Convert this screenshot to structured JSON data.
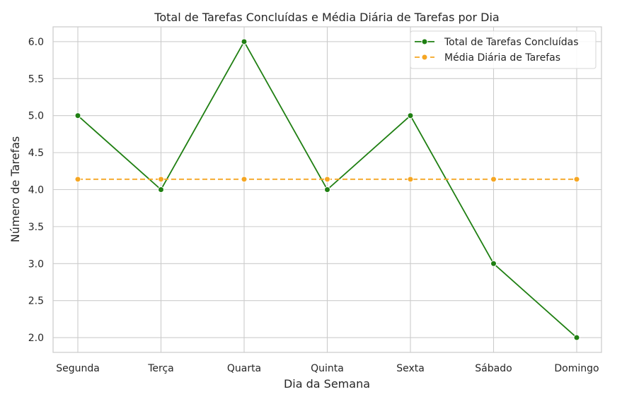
{
  "chart_data": {
    "type": "line",
    "title": "Total de Tarefas Concluídas e Média Diária de Tarefas por Dia",
    "xlabel": "Dia da Semana",
    "ylabel": "Número de Tarefas",
    "categories": [
      "Segunda",
      "Terça",
      "Quarta",
      "Quinta",
      "Sexta",
      "Sábado",
      "Domingo"
    ],
    "ylim": [
      1.8,
      6.2
    ],
    "yticks": [
      "2.0",
      "2.5",
      "3.0",
      "3.5",
      "4.0",
      "4.5",
      "5.0",
      "5.5",
      "6.0"
    ],
    "grid": true,
    "legend_position": "top-right",
    "series": [
      {
        "name": "Total de Tarefas Concluídas",
        "values": [
          5,
          4,
          6,
          4,
          5,
          3,
          2
        ],
        "color": "#1f7f12",
        "line_style": "solid",
        "marker": "circle"
      },
      {
        "name": "Média Diária de Tarefas",
        "values": [
          4.14,
          4.14,
          4.14,
          4.14,
          4.14,
          4.14,
          4.14
        ],
        "color": "#f5a623",
        "line_style": "dashed",
        "marker": "circle"
      }
    ]
  }
}
